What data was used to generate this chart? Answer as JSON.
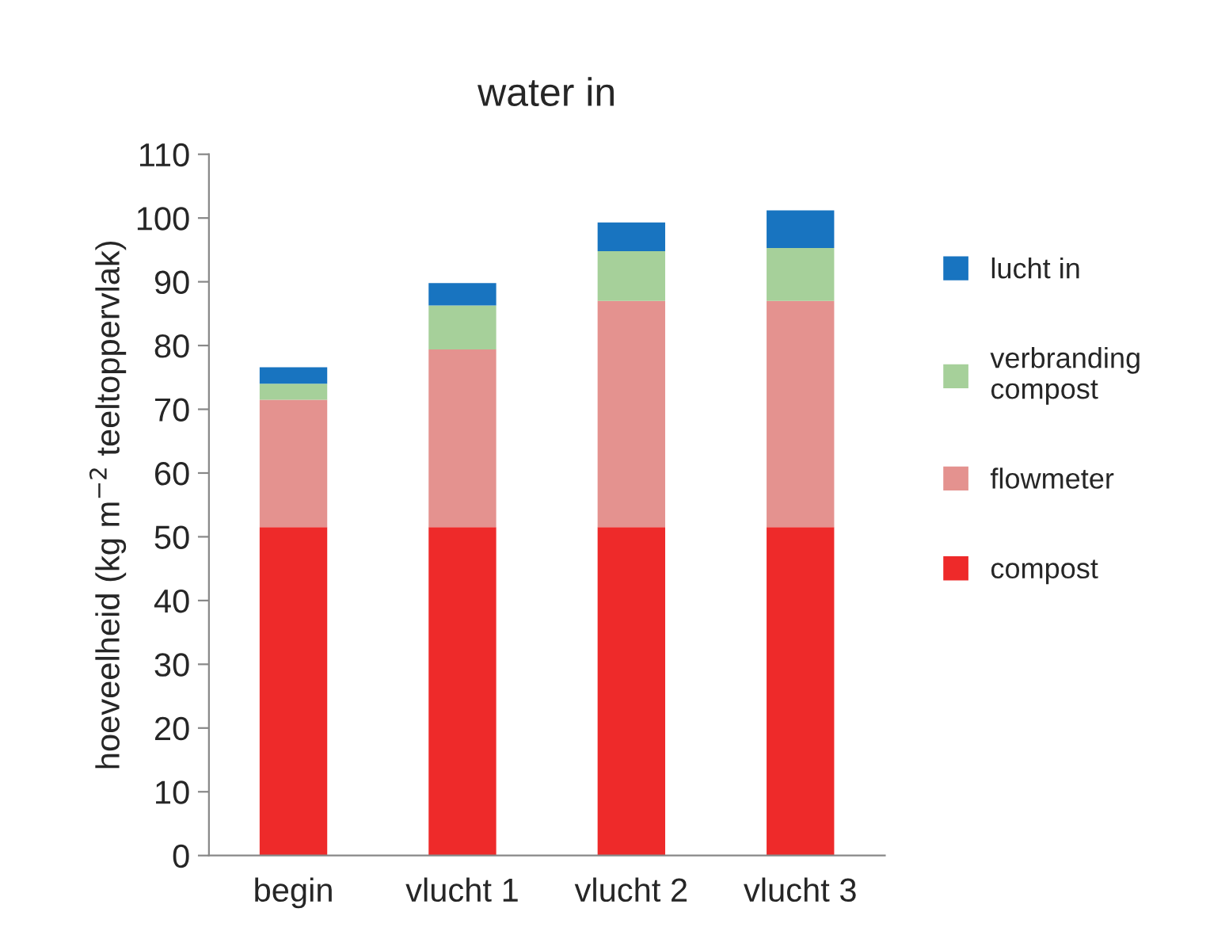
{
  "chart_data": {
    "type": "bar",
    "title": "water in",
    "ylabel": "hoeveelheid (kg m$^{−2}$ teeltoppervlak)",
    "categories": [
      "begin",
      "vlucht 1",
      "vlucht 2",
      "vlucht 3"
    ],
    "stacked": true,
    "series": [
      {
        "name": "compost",
        "color": "#ee2a2a",
        "values": [
          51.5,
          51.5,
          51.5,
          51.5
        ]
      },
      {
        "name": "flowmeter",
        "color": "#e4928f",
        "values": [
          20,
          27.9,
          35.5,
          35.5
        ]
      },
      {
        "name": "verbranding compost",
        "color": "#a6d09a",
        "values": [
          2.5,
          6.9,
          7.8,
          8.3
        ]
      },
      {
        "name": "lucht in",
        "color": "#1874c0",
        "values": [
          2.6,
          3.5,
          4.5,
          5.9
        ]
      }
    ],
    "ylim": [
      0,
      110
    ],
    "yticks": [
      0,
      10,
      20,
      30,
      40,
      50,
      60,
      70,
      80,
      90,
      100,
      110
    ],
    "grid": false,
    "legend": "right"
  }
}
